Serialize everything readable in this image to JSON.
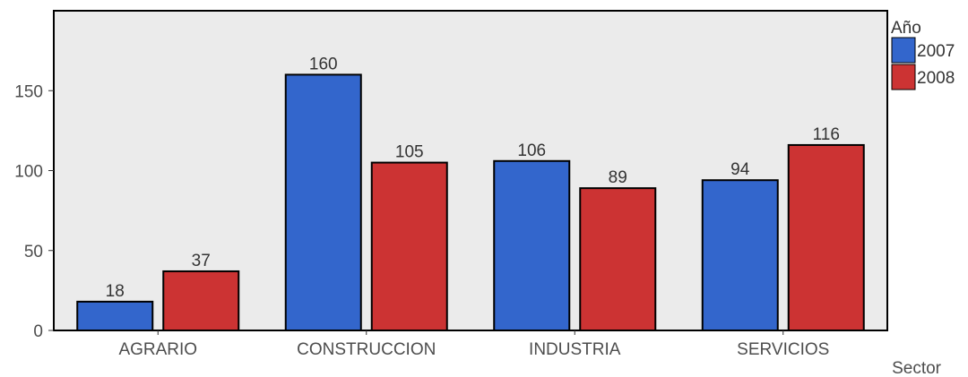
{
  "chart_data": {
    "type": "bar",
    "categories": [
      "AGRARIO",
      "CONSTRUCCION",
      "INDUSTRIA",
      "SERVICIOS"
    ],
    "series": [
      {
        "name": "2007",
        "values": [
          18,
          160,
          106,
          94
        ],
        "color": "#3366cc"
      },
      {
        "name": "2008",
        "values": [
          37,
          105,
          89,
          116
        ],
        "color": "#cc3333"
      }
    ],
    "xlabel": "Sector",
    "ylabel": "",
    "ylim": [
      0,
      200
    ],
    "yticks": [
      0,
      50,
      100,
      150
    ],
    "legend_title": "Año",
    "legend_position": "top-right",
    "grid": false,
    "background": "#ebebeb"
  }
}
